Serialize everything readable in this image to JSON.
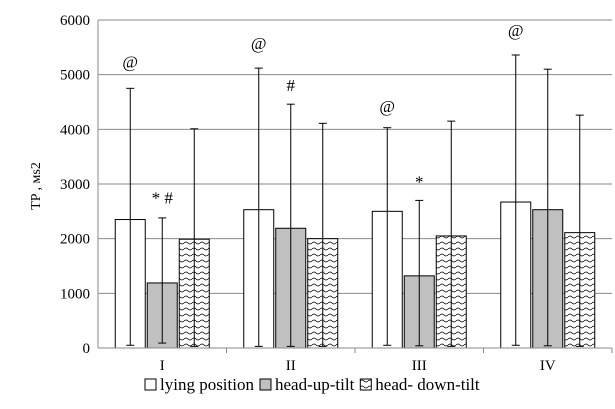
{
  "chart_data": {
    "type": "bar",
    "ylabel": "TP , мs2",
    "ylim": [
      0,
      6000
    ],
    "yticks": [
      0,
      1000,
      2000,
      3000,
      4000,
      5000,
      6000
    ],
    "grid": true,
    "legend_position": "bottom",
    "categories": [
      "I",
      "II",
      "III",
      "IV"
    ],
    "series": [
      {
        "name": "lying position",
        "fill": "#ffffff",
        "pattern": "none",
        "values": [
          2350,
          2530,
          2500,
          2670
        ],
        "error_upper": [
          4750,
          5120,
          4030,
          5360
        ],
        "error_lower": [
          50,
          30,
          50,
          50
        ]
      },
      {
        "name": "head-up-tilt",
        "fill": "#c0c0c0",
        "pattern": "none",
        "values": [
          1190,
          2190,
          1320,
          2530
        ],
        "error_upper": [
          2380,
          4460,
          2700,
          5100
        ],
        "error_lower": [
          90,
          30,
          40,
          40
        ]
      },
      {
        "name": "head- down-tilt",
        "fill": "#ffffff",
        "pattern": "waves",
        "values": [
          1990,
          2000,
          2050,
          2110
        ],
        "error_upper": [
          4010,
          4110,
          4150,
          4260
        ],
        "error_lower": [
          30,
          30,
          30,
          30
        ]
      }
    ],
    "annotations": [
      {
        "category": "I",
        "series": 0,
        "text": "@",
        "y": 5130
      },
      {
        "category": "I",
        "series": 1,
        "text": "* #",
        "y": 2640
      },
      {
        "category": "II",
        "series": 0,
        "text": "@",
        "y": 5470
      },
      {
        "category": "II",
        "series": 1,
        "text": "#",
        "y": 4700
      },
      {
        "category": "III",
        "series": 0,
        "text": "@",
        "y": 4320
      },
      {
        "category": "III",
        "series": 1,
        "text": "*",
        "y": 2940
      },
      {
        "category": "IV",
        "series": 0,
        "text": "@",
        "y": 5710
      }
    ]
  }
}
